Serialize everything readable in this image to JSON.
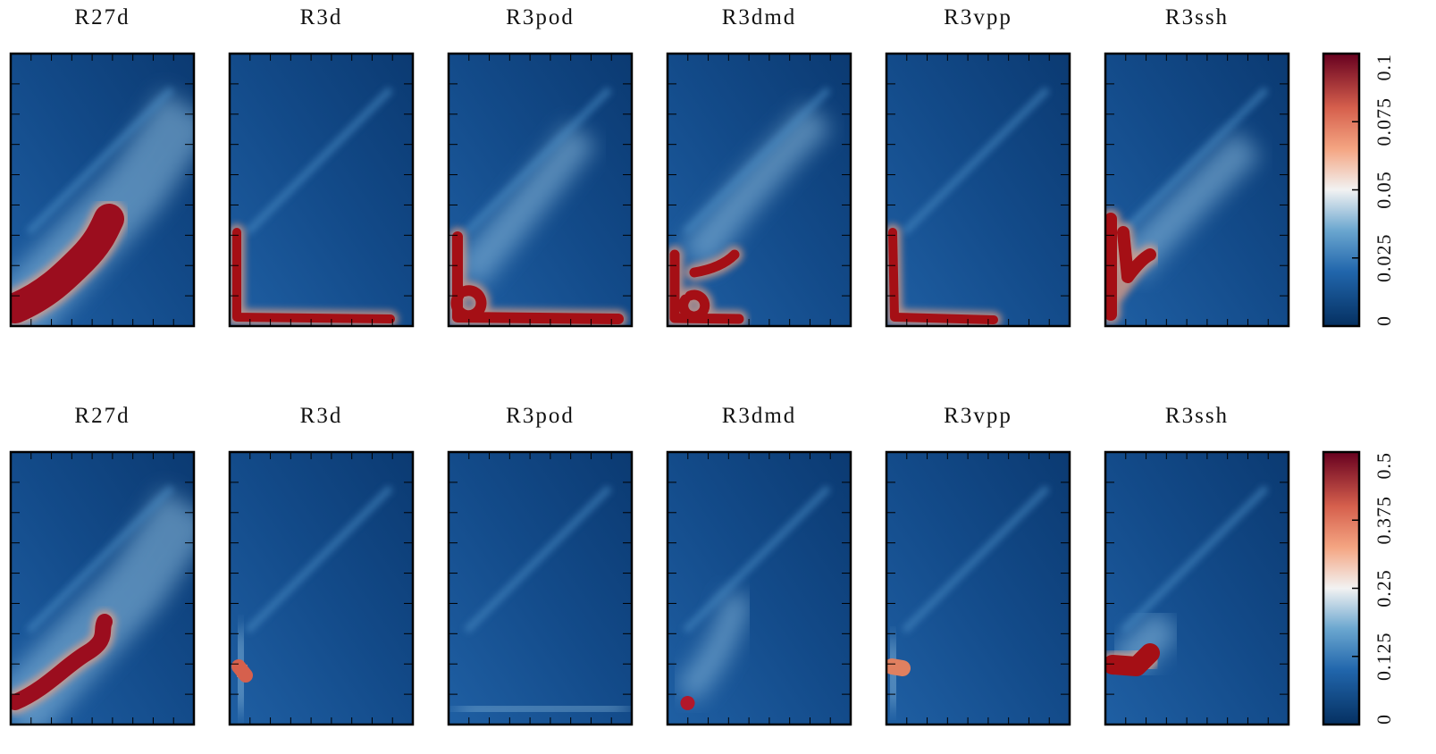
{
  "chart_data": [
    {
      "type": "heatmap",
      "panels": [
        "R27d",
        "R3d",
        "R3pod",
        "R3dmd",
        "R3vpp",
        "R3ssh"
      ],
      "colorbar": {
        "lim": [
          0,
          0.1
        ],
        "ticks": [
          0,
          0.025,
          0.05,
          0.075,
          0.1
        ]
      }
    },
    {
      "type": "heatmap",
      "panels": [
        "R27d",
        "R3d",
        "R3pod",
        "R3dmd",
        "R3vpp",
        "R3ssh"
      ],
      "colorbar": {
        "lim": [
          0,
          0.5
        ],
        "ticks": [
          0,
          0.125,
          0.25,
          0.375,
          0.5
        ]
      }
    }
  ]
}
